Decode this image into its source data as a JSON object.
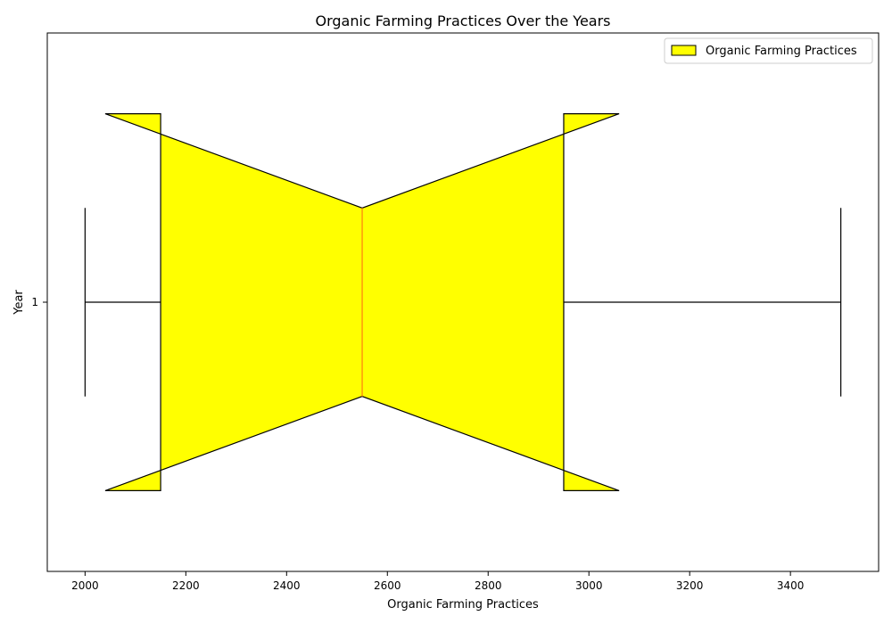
{
  "chart_data": {
    "type": "boxplot",
    "orientation": "horizontal",
    "notched": true,
    "title": "Organic Farming Practices Over the Years",
    "xlabel": "Organic Farming Practices",
    "ylabel": "Year",
    "xlim": [
      1925,
      3575
    ],
    "ylim": [
      0.5,
      1.5
    ],
    "xticks": [
      2000,
      2200,
      2400,
      2600,
      2800,
      3000,
      3200,
      3400
    ],
    "xtick_labels": [
      "2000",
      "2200",
      "2400",
      "2600",
      "2800",
      "3000",
      "3200",
      "3400"
    ],
    "yticks": [
      1
    ],
    "ytick_labels": [
      "1"
    ],
    "series": [
      {
        "name": "Organic Farming Practices",
        "position": 1,
        "whisker_low": 2000,
        "q1": 2150,
        "median": 2550,
        "q3": 2950,
        "whisker_high": 3500,
        "notch_low": 2040,
        "notch_high": 3060,
        "box_half_width": 0.35,
        "waist_half_width": 0.175,
        "cap_half_width": 0.175,
        "fill_color": "#ffff00",
        "edge_color": "#000000",
        "median_color": "#ff7f0e"
      }
    ],
    "legend": {
      "placement": "top-right",
      "entries": [
        "Organic Farming Practices"
      ]
    },
    "grid": false
  }
}
